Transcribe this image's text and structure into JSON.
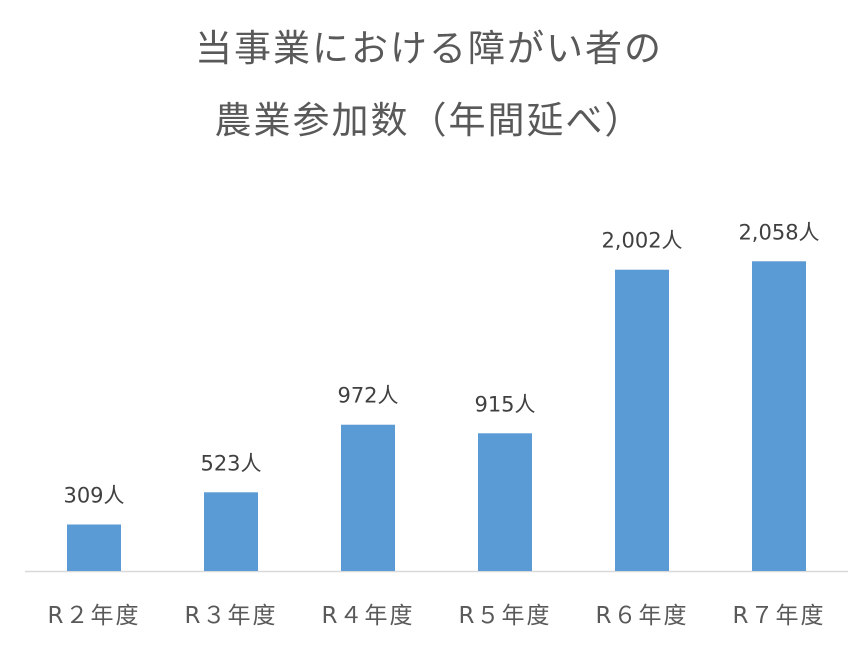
{
  "chart_data": {
    "type": "bar",
    "title_lines": [
      "当事業における障がい者の",
      "農業参加数（年間延べ）"
    ],
    "categories": [
      "R２年度",
      "R３年度",
      "R４年度",
      "R５年度",
      "R６年度",
      "R７年度"
    ],
    "values": [
      309,
      523,
      972,
      915,
      2002,
      2058
    ],
    "data_labels": [
      "309人",
      "523人",
      "972人",
      "915人",
      "2,002人",
      "2,058人"
    ],
    "unit": "人",
    "ylim": [
      0,
      2200
    ],
    "grid": false,
    "legend": "none",
    "bar_color": "#5b9bd5",
    "axis_color": "#d9d9d9",
    "label_color": "#404040",
    "tick_color": "#595959"
  }
}
